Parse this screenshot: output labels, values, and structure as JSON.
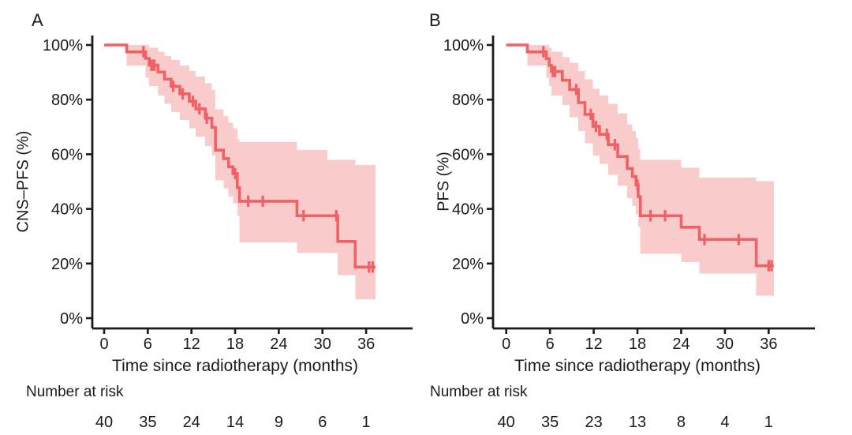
{
  "figure": {
    "background": "#ffffff",
    "axis_color": "#1a1a1a"
  },
  "chart_data": [
    {
      "panel": "A",
      "type": "line",
      "subtype": "kaplan-meier-step-with-confidence-band",
      "title": "A",
      "ylabel": "CNS–PFS (%)",
      "xlabel": "Time since radiotherapy (months)",
      "x_ticks": [
        0,
        6,
        12,
        18,
        24,
        30,
        36
      ],
      "y_ticks_pct": [
        0,
        20,
        40,
        60,
        80,
        100
      ],
      "y_tick_labels": [
        "0%",
        "20%",
        "40%",
        "60%",
        "80%",
        "100%"
      ],
      "xlim": [
        0,
        42
      ],
      "ylim_pct": [
        0,
        100
      ],
      "grid": false,
      "legend": "none",
      "line_color": "#EE6165",
      "ribbon_color": "#FACBCB",
      "steps": [
        [
          0,
          100
        ],
        [
          3.1,
          97.5
        ],
        [
          5.7,
          95.1
        ],
        [
          6.2,
          92.6
        ],
        [
          7.4,
          90.1
        ],
        [
          8.3,
          87.5
        ],
        [
          9.2,
          84.9
        ],
        [
          10.4,
          82.1
        ],
        [
          11.7,
          79.4
        ],
        [
          12.6,
          76.6
        ],
        [
          13.9,
          73.2
        ],
        [
          14.8,
          69.8
        ],
        [
          15.3,
          61.5
        ],
        [
          16.4,
          58.4
        ],
        [
          17.1,
          55.4
        ],
        [
          17.7,
          52.9
        ],
        [
          18.3,
          47.8
        ],
        [
          18.6,
          42.8
        ],
        [
          26.5,
          37.5
        ],
        [
          32.1,
          28.1
        ],
        [
          34.5,
          18.7
        ]
      ],
      "curve_end_month": 37.3,
      "censor_months": [
        5.4,
        6.5,
        6.7,
        6.9,
        9.5,
        10.8,
        12.2,
        13.1,
        14.1,
        18.0,
        19.8,
        21.8,
        27.4,
        31.9,
        36.4,
        36.9
      ],
      "ribbon": [
        [
          3.1,
          100,
          92.5
        ],
        [
          5.7,
          100,
          88
        ],
        [
          6.2,
          99,
          85
        ],
        [
          7.4,
          97.5,
          81.5
        ],
        [
          8.3,
          96,
          78.5
        ],
        [
          9.2,
          94.5,
          75.5
        ],
        [
          10.4,
          92.5,
          72.5
        ],
        [
          11.7,
          90.5,
          69.5
        ],
        [
          12.6,
          88.5,
          66.5
        ],
        [
          13.9,
          86,
          63
        ],
        [
          14.8,
          83.5,
          59.5
        ],
        [
          15.3,
          76.5,
          50.5
        ],
        [
          16.4,
          74,
          47.5
        ],
        [
          17.1,
          71.5,
          44.5
        ],
        [
          17.7,
          69.5,
          42
        ],
        [
          18.3,
          65.5,
          37.5
        ],
        [
          18.6,
          64.5,
          27.8
        ],
        [
          26.5,
          61.5,
          23.9
        ],
        [
          30.7,
          58,
          23.9
        ],
        [
          32.1,
          58,
          15.8
        ],
        [
          34.5,
          56,
          7
        ]
      ],
      "number_at_risk": {
        "label": "Number at risk",
        "months": [
          0,
          6,
          12,
          18,
          24,
          30,
          36
        ],
        "values": [
          40,
          35,
          24,
          14,
          9,
          6,
          1
        ]
      }
    },
    {
      "panel": "B",
      "type": "line",
      "subtype": "kaplan-meier-step-with-confidence-band",
      "title": "B",
      "ylabel": "PFS (%)",
      "xlabel": "Time since radiotherapy (months)",
      "x_ticks": [
        0,
        6,
        12,
        18,
        24,
        30,
        36
      ],
      "y_ticks_pct": [
        0,
        20,
        40,
        60,
        80,
        100
      ],
      "y_tick_labels": [
        "0%",
        "20%",
        "40%",
        "60%",
        "80%",
        "100%"
      ],
      "xlim": [
        0,
        42
      ],
      "ylim_pct": [
        0,
        100
      ],
      "grid": false,
      "legend": "none",
      "line_color": "#EE6165",
      "ribbon_color": "#FACBCB",
      "steps": [
        [
          0,
          100
        ],
        [
          2.9,
          97.5
        ],
        [
          5.5,
          95
        ],
        [
          5.9,
          92.5
        ],
        [
          6.2,
          90.3
        ],
        [
          7.7,
          87.1
        ],
        [
          8.7,
          83.7
        ],
        [
          9.9,
          78.9
        ],
        [
          10.8,
          74.6
        ],
        [
          11.9,
          70.2
        ],
        [
          12.8,
          67.3
        ],
        [
          14.0,
          63.5
        ],
        [
          15.3,
          59.2
        ],
        [
          16.6,
          54.8
        ],
        [
          17.3,
          51.9
        ],
        [
          17.8,
          48.8
        ],
        [
          18.1,
          44.5
        ],
        [
          18.4,
          37.5
        ],
        [
          24.0,
          33.3
        ],
        [
          26.5,
          28.8
        ],
        [
          34.3,
          19.2
        ]
      ],
      "curve_end_month": 36.7,
      "censor_months": [
        5.1,
        6.4,
        6.7,
        9.6,
        11.6,
        12.3,
        13.8,
        14.9,
        18.0,
        19.8,
        21.8,
        27.2,
        31.9,
        36.0,
        36.4
      ],
      "ribbon": [
        [
          2.9,
          100,
          92.5
        ],
        [
          5.5,
          100,
          88
        ],
        [
          5.9,
          99,
          85
        ],
        [
          6.2,
          97.5,
          81.5
        ],
        [
          7.7,
          95.5,
          78
        ],
        [
          8.7,
          93.5,
          73.5
        ],
        [
          9.9,
          90.5,
          68.5
        ],
        [
          10.8,
          87.5,
          64
        ],
        [
          11.9,
          84,
          59.5
        ],
        [
          12.8,
          81.5,
          56.5
        ],
        [
          14.0,
          78.5,
          52.5
        ],
        [
          15.3,
          75,
          48.5
        ],
        [
          16.6,
          71,
          44
        ],
        [
          17.3,
          68.5,
          41
        ],
        [
          17.8,
          66,
          38
        ],
        [
          18.1,
          62,
          33.5
        ],
        [
          18.4,
          58,
          23.5
        ],
        [
          24.0,
          55,
          20.5
        ],
        [
          26.5,
          51.5,
          16.4
        ],
        [
          34.3,
          50.2,
          8.2
        ]
      ],
      "number_at_risk": {
        "label": "Number at risk",
        "months": [
          0,
          6,
          12,
          18,
          24,
          30,
          36
        ],
        "values": [
          40,
          35,
          23,
          13,
          8,
          4,
          1
        ]
      }
    }
  ]
}
